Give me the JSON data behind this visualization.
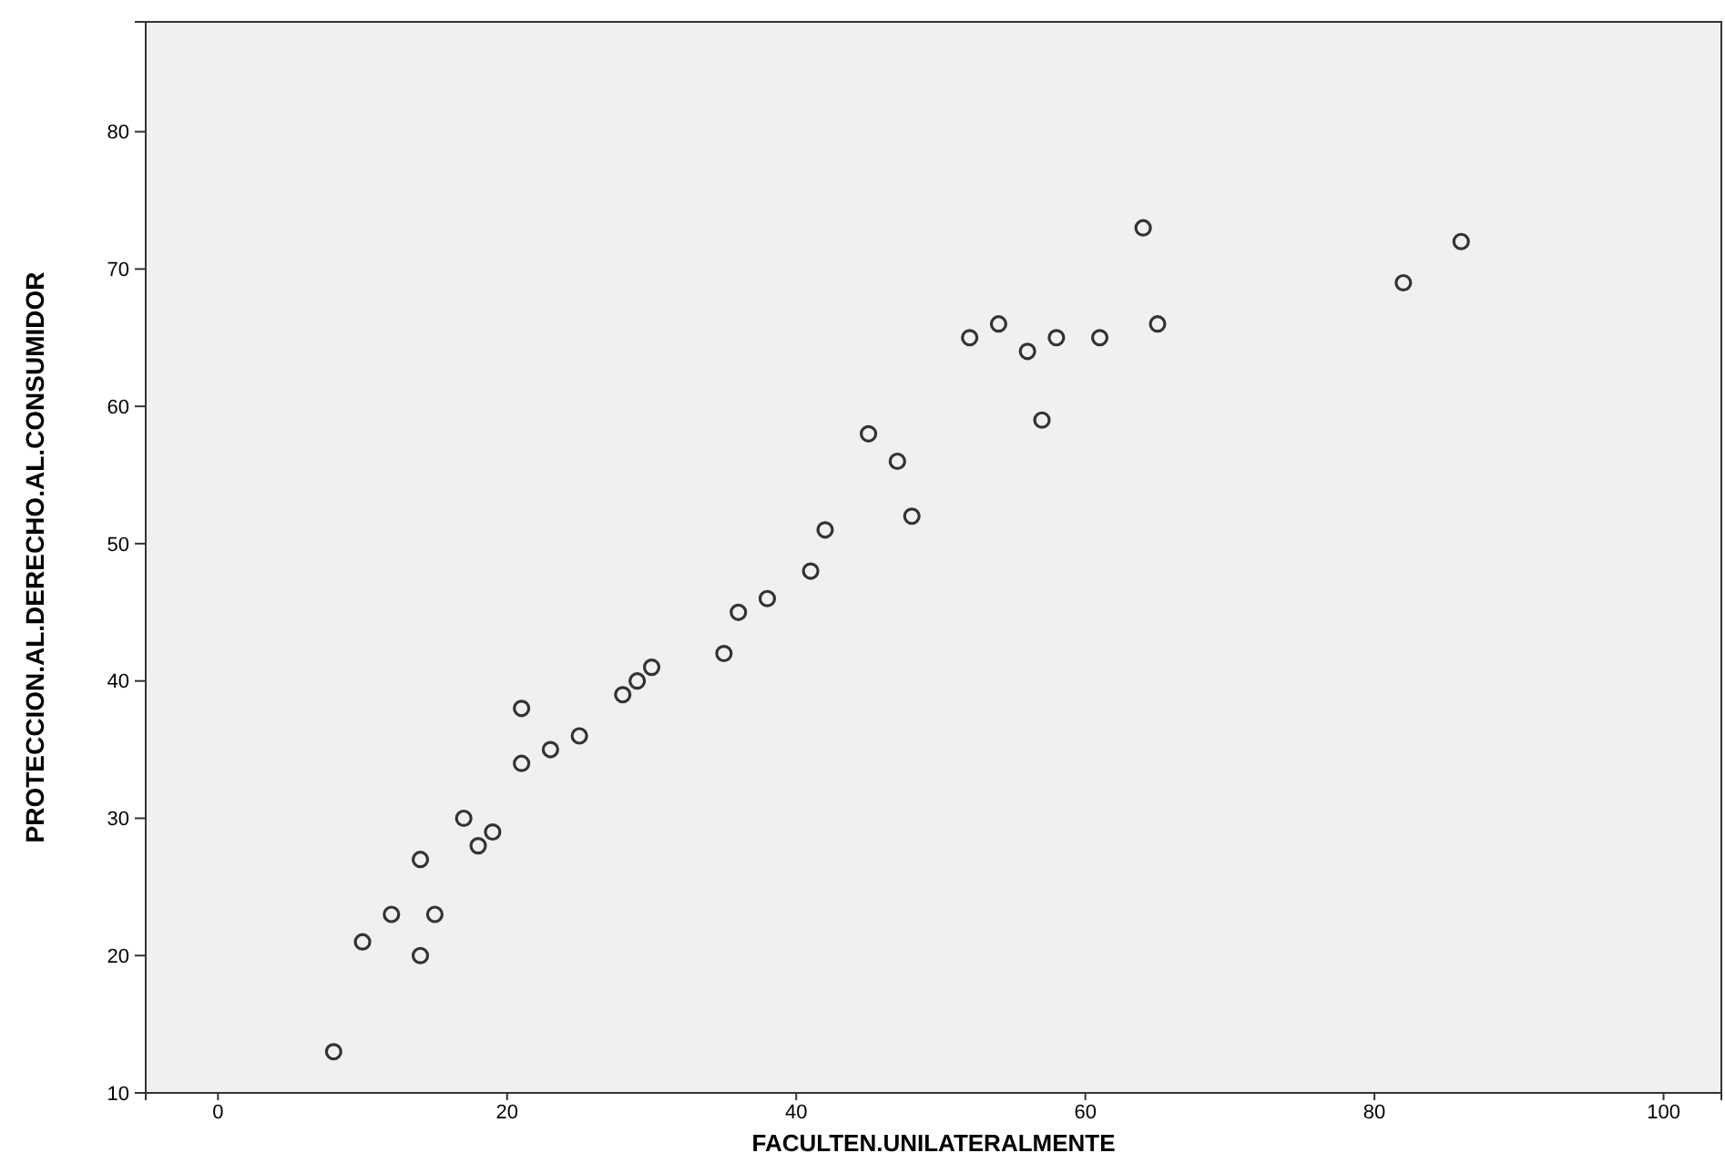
{
  "chart_data": {
    "type": "scatter",
    "xlabel": "FACULTEN.UNILATERALMENTE",
    "ylabel": "PROTECCION.AL.DERECHO.AL.CONSUMIDOR",
    "x": [
      8,
      10,
      12,
      14,
      14,
      15,
      17,
      18,
      19,
      21,
      21,
      23,
      25,
      28,
      29,
      30,
      35,
      36,
      38,
      41,
      42,
      45,
      47,
      48,
      52,
      54,
      56,
      58,
      57,
      61,
      64,
      65,
      82,
      86
    ],
    "series": [
      {
        "color": "#333333",
        "values": [
          13,
          21,
          23,
          27,
          20,
          23,
          30,
          28,
          29,
          38,
          34,
          35,
          36,
          39,
          40,
          41,
          42,
          45,
          46,
          48,
          51,
          58,
          56,
          52,
          65,
          66,
          64,
          65,
          59,
          65,
          73,
          66,
          69,
          72
        ]
      }
    ],
    "xlim": [
      -5,
      104
    ],
    "ylim": [
      10,
      88
    ],
    "xticks": [
      0,
      20,
      40,
      60,
      80,
      100
    ],
    "yticks": [
      10,
      20,
      30,
      40,
      50,
      60,
      70,
      80
    ],
    "marker": "circle",
    "grid": false
  }
}
